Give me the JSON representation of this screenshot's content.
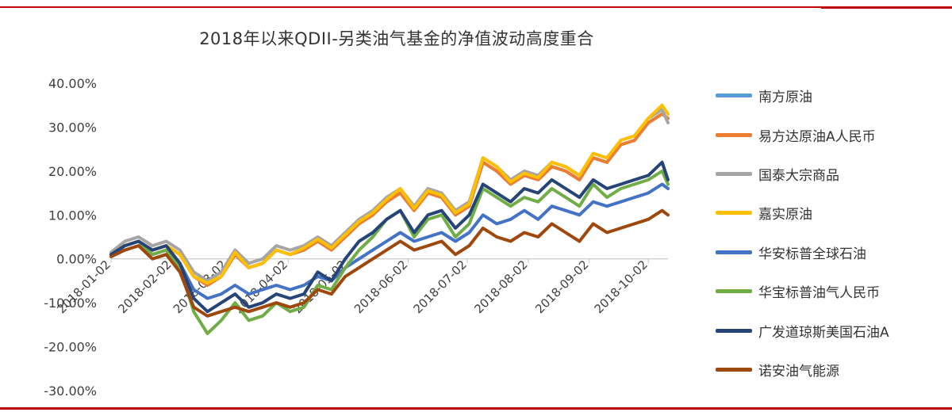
{
  "chart_data": {
    "type": "line",
    "title": "2018年以来QDII-另类油气基金的净值波动高度重合",
    "y_tick_labels": [
      "40.00%",
      "30.00%",
      "20.00%",
      "10.00%",
      "0.00%",
      "-10.00%",
      "-20.00%",
      "-30.00%"
    ],
    "ylim": [
      -30,
      40
    ],
    "x_tick_labels": [
      "2018-01-02",
      "2018-02-02",
      "2018-03-02",
      "2018-04-02",
      "2018-05-02",
      "2018-06-02",
      "2018-07-02",
      "2018-08-02",
      "2018-09-02",
      "2018-10-02"
    ],
    "x": [
      "2018-01-02",
      "2018-01-09",
      "2018-01-16",
      "2018-01-23",
      "2018-01-30",
      "2018-02-06",
      "2018-02-13",
      "2018-02-20",
      "2018-02-27",
      "2018-03-06",
      "2018-03-13",
      "2018-03-20",
      "2018-03-27",
      "2018-04-03",
      "2018-04-10",
      "2018-04-17",
      "2018-04-24",
      "2018-05-01",
      "2018-05-08",
      "2018-05-15",
      "2018-05-22",
      "2018-05-29",
      "2018-06-05",
      "2018-06-12",
      "2018-06-19",
      "2018-06-26",
      "2018-07-03",
      "2018-07-10",
      "2018-07-17",
      "2018-07-24",
      "2018-07-31",
      "2018-08-07",
      "2018-08-14",
      "2018-08-21",
      "2018-08-28",
      "2018-09-04",
      "2018-09-11",
      "2018-09-18",
      "2018-09-25",
      "2018-10-02",
      "2018-10-09",
      "2018-10-12"
    ],
    "series": [
      {
        "name": "南方原油",
        "color": "#5b9bd5",
        "values": [
          1,
          3,
          4,
          2,
          3,
          1,
          -4,
          -6,
          -4,
          1,
          -2,
          -1,
          2,
          1,
          2,
          4,
          2,
          5,
          8,
          10,
          13,
          15,
          11,
          15,
          14,
          10,
          12,
          22,
          20,
          17,
          19,
          18,
          21,
          20,
          18,
          23,
          22,
          26,
          27,
          31,
          33,
          32
        ]
      },
      {
        "name": "易方达原油A人民币",
        "color": "#ed7d31",
        "values": [
          1,
          3,
          4,
          2,
          3,
          1,
          -4,
          -6,
          -4,
          1,
          -2,
          -1,
          2,
          1,
          2,
          4,
          2,
          5,
          8,
          10,
          13,
          15,
          11,
          15,
          14,
          10,
          12,
          22,
          20,
          17,
          19,
          18,
          21,
          20,
          18,
          23,
          22,
          26,
          27,
          31,
          33,
          32
        ]
      },
      {
        "name": "国泰大宗商品",
        "color": "#a5a5a5",
        "values": [
          1.5,
          4,
          5,
          3,
          4,
          2,
          -3,
          -5,
          -3,
          2,
          -1,
          0,
          3,
          2,
          3,
          5,
          3,
          6,
          9,
          11,
          14,
          16,
          12,
          16,
          15,
          11,
          13,
          23,
          21,
          18,
          20,
          19,
          22,
          21,
          19,
          24,
          23,
          27,
          28,
          32,
          34,
          31
        ]
      },
      {
        "name": "嘉实原油",
        "color": "#ffc000",
        "values": [
          1,
          3,
          4,
          2,
          3,
          1,
          -4,
          -5.5,
          -4,
          1.5,
          -2,
          -1,
          2,
          1,
          2.5,
          4.5,
          2.5,
          5.5,
          8.5,
          10.5,
          13.5,
          16,
          11.5,
          15.5,
          14.5,
          10.5,
          12.5,
          23,
          21,
          17.5,
          19.5,
          18.5,
          22,
          21,
          19,
          24,
          23,
          27,
          28,
          32,
          35,
          33
        ]
      },
      {
        "name": "华安标普全球石油",
        "color": "#4472c4",
        "values": [
          1,
          2,
          3,
          1,
          2,
          -1,
          -7,
          -9,
          -8,
          -6,
          -8,
          -7,
          -6,
          -7,
          -6,
          -4,
          -5,
          -2,
          0,
          2,
          4,
          6,
          4,
          5,
          6,
          4,
          6,
          10,
          8,
          9,
          11,
          9,
          12,
          11,
          10,
          13,
          12,
          13,
          14,
          15,
          17,
          16
        ]
      },
      {
        "name": "华宝标普油气人民币",
        "color": "#70ad47",
        "values": [
          1,
          3,
          4,
          1,
          2,
          -2,
          -12,
          -17,
          -14,
          -10,
          -14,
          -13,
          -10,
          -12,
          -11,
          -6,
          -7,
          -2,
          2,
          5,
          9,
          11,
          5,
          9,
          10,
          5,
          8,
          16,
          14,
          12,
          14,
          13,
          16,
          14,
          12,
          17,
          14,
          16,
          17,
          18,
          20,
          17
        ]
      },
      {
        "name": "广发道琼斯美国石油A",
        "color": "#264478",
        "values": [
          1,
          3,
          4,
          2,
          3,
          -1,
          -9,
          -12,
          -10,
          -8,
          -11,
          -10,
          -8,
          -9,
          -8,
          -3,
          -5,
          0,
          4,
          6,
          9,
          11,
          6,
          10,
          11,
          7,
          10,
          17,
          15,
          13,
          16,
          15,
          18,
          16,
          14,
          18,
          16,
          17,
          18,
          19,
          22,
          18
        ]
      },
      {
        "name": "诺安油气能源",
        "color": "#9e480e",
        "values": [
          0.5,
          2,
          3,
          0,
          1,
          -3,
          -11,
          -13,
          -12,
          -11,
          -12,
          -11,
          -10,
          -11,
          -10,
          -7,
          -8,
          -4,
          -2,
          0,
          2,
          4,
          2,
          3,
          4,
          1,
          3,
          7,
          5,
          4,
          6,
          5,
          8,
          6,
          4,
          8,
          6,
          7,
          8,
          9,
          11,
          10
        ]
      }
    ]
  }
}
